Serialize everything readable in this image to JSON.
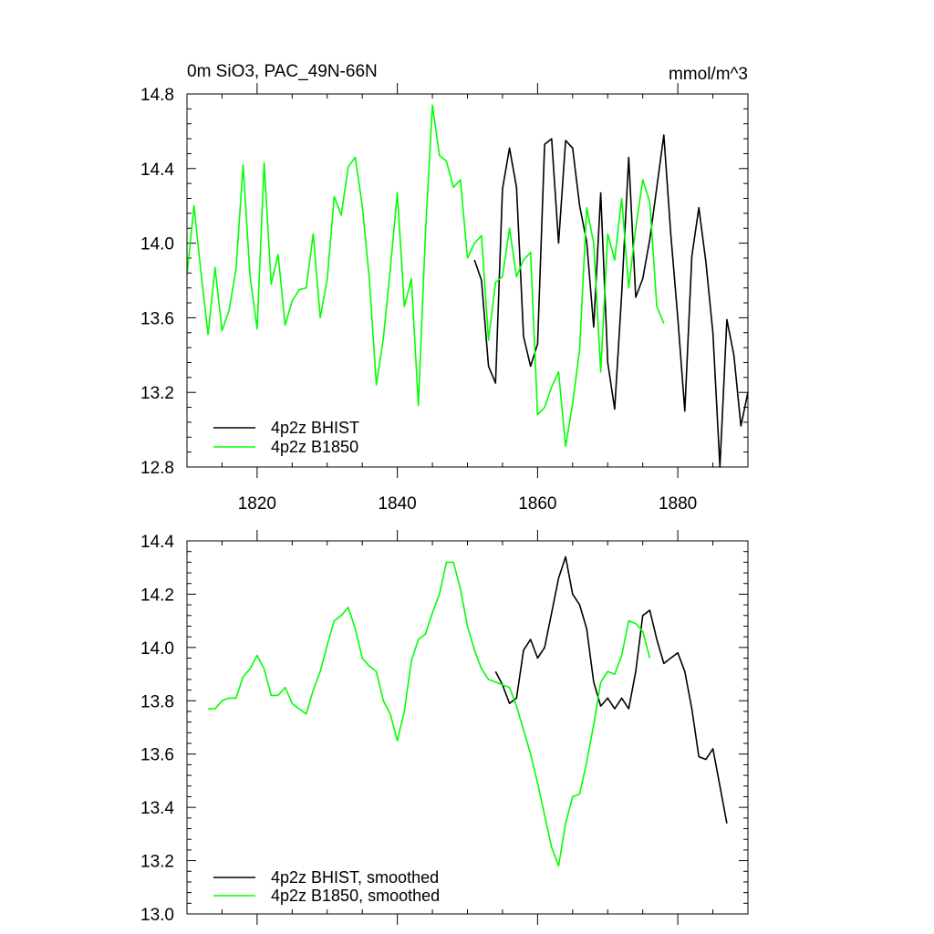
{
  "chart_data": [
    {
      "type": "line",
      "title": "0m SiO3, PAC_49N-66N",
      "units": "mmol/m^3",
      "xlabel": "",
      "ylabel": "",
      "xlim": [
        1810,
        1890
      ],
      "ylim": [
        12.8,
        14.8
      ],
      "xticks": [
        1820,
        1840,
        1860,
        1880
      ],
      "xtick_labels": [
        "1820",
        "1840",
        "1860",
        "1880"
      ],
      "yticks": [
        12.8,
        13.2,
        13.6,
        14.0,
        14.4,
        14.8
      ],
      "ytick_labels": [
        "12.8",
        "13.2",
        "13.6",
        "14.0",
        "14.4",
        "14.8"
      ],
      "legend_position": "bottom-left",
      "series": [
        {
          "name": "4p2z BHIST",
          "color": "#000000",
          "x_start": 1851,
          "values": [
            13.91,
            13.8,
            13.34,
            13.25,
            14.29,
            14.51,
            14.3,
            13.5,
            13.34,
            13.46,
            14.53,
            14.56,
            14.0,
            14.55,
            14.51,
            14.2,
            14.01,
            13.55,
            14.27,
            13.36,
            13.11,
            13.73,
            14.46,
            13.71,
            13.81,
            14.02,
            14.3,
            14.58,
            14.05,
            13.6,
            13.1,
            13.93,
            14.19,
            13.9,
            13.52,
            12.8,
            13.59,
            13.4,
            13.02,
            13.2
          ]
        },
        {
          "name": "4p2z B1850",
          "color": "#00ff00",
          "x_start": 1810,
          "values": [
            13.83,
            14.2,
            13.84,
            13.51,
            13.87,
            13.53,
            13.64,
            13.86,
            14.42,
            13.82,
            13.54,
            14.43,
            13.78,
            13.94,
            13.56,
            13.69,
            13.75,
            13.76,
            14.05,
            13.6,
            13.81,
            14.25,
            14.15,
            14.41,
            14.46,
            14.2,
            13.81,
            13.24,
            13.49,
            13.86,
            14.27,
            13.66,
            13.81,
            13.13,
            14.05,
            14.74,
            14.47,
            14.44,
            14.3,
            14.34,
            13.92,
            14.0,
            14.04,
            13.48,
            13.79,
            13.82,
            14.08,
            13.82,
            13.91,
            13.95,
            13.08,
            13.12,
            13.23,
            13.31,
            12.91,
            13.14,
            13.43,
            14.19,
            14.0,
            13.31,
            14.05,
            13.91,
            14.24,
            13.76,
            14.08,
            14.34,
            14.22,
            13.66,
            13.57
          ]
        }
      ]
    },
    {
      "type": "line",
      "title": "",
      "xlabel": "",
      "ylabel": "",
      "xlim": [
        1810,
        1890
      ],
      "ylim": [
        13.0,
        14.4
      ],
      "xticks": [
        1820,
        1840,
        1860,
        1880
      ],
      "yticks": [
        13.0,
        13.2,
        13.4,
        13.6,
        13.8,
        14.0,
        14.2,
        14.4
      ],
      "ytick_labels": [
        "13.0",
        "13.2",
        "13.4",
        "13.6",
        "13.8",
        "14.0",
        "14.2",
        "14.4"
      ],
      "legend_position": "bottom-left",
      "series": [
        {
          "name": "4p2z BHIST, smoothed",
          "color": "#000000",
          "x_start": 1854,
          "values": [
            13.91,
            13.86,
            13.79,
            13.81,
            13.99,
            14.03,
            13.96,
            14.0,
            14.13,
            14.26,
            14.34,
            14.2,
            14.16,
            14.07,
            13.87,
            13.78,
            13.81,
            13.77,
            13.81,
            13.77,
            13.91,
            14.12,
            14.14,
            14.03,
            13.94,
            13.96,
            13.98,
            13.91,
            13.77,
            13.59,
            13.58,
            13.62,
            13.48,
            13.34
          ]
        },
        {
          "name": "4p2z B1850, smoothed",
          "color": "#00ff00",
          "x_start": 1813,
          "values": [
            13.77,
            13.77,
            13.8,
            13.81,
            13.81,
            13.89,
            13.92,
            13.97,
            13.92,
            13.82,
            13.82,
            13.85,
            13.79,
            13.77,
            13.75,
            13.84,
            13.91,
            14.01,
            14.1,
            14.12,
            14.15,
            14.07,
            13.96,
            13.93,
            13.91,
            13.8,
            13.75,
            13.65,
            13.76,
            13.95,
            14.03,
            14.05,
            14.13,
            14.2,
            14.32,
            14.32,
            14.22,
            14.08,
            13.99,
            13.92,
            13.88,
            13.87,
            13.86,
            13.85,
            13.78,
            13.69,
            13.6,
            13.49,
            13.37,
            13.25,
            13.18,
            13.34,
            13.44,
            13.45,
            13.57,
            13.71,
            13.87,
            13.91,
            13.9,
            13.97,
            14.1,
            14.09,
            14.06,
            13.96
          ]
        }
      ]
    }
  ]
}
